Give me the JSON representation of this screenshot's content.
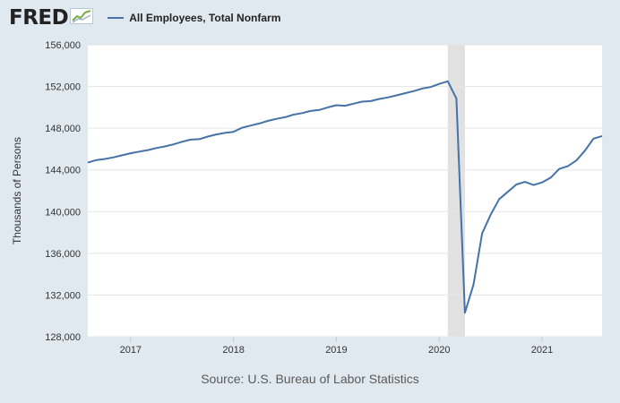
{
  "header": {
    "logo": "FRED",
    "logo_icon": "fred-chart-icon",
    "legend_label": "All Employees, Total Nonfarm"
  },
  "colors": {
    "background": "#e1e9f0",
    "plot": "#ffffff",
    "series": "#4572a7",
    "recession": "#e1e1e1",
    "grid": "#e6e6e6"
  },
  "source": "Source: U.S. Bureau of Labor Statistics",
  "chart_data": {
    "type": "line",
    "title": "",
    "xlabel": "",
    "ylabel": "Thousands of Persons",
    "ylim": [
      128000,
      156000
    ],
    "xlim": [
      "2016-08",
      "2021-08"
    ],
    "yticks": [
      {
        "value": 128000,
        "label": "128,000"
      },
      {
        "value": 132000,
        "label": "132,000"
      },
      {
        "value": 136000,
        "label": "136,000"
      },
      {
        "value": 140000,
        "label": "140,000"
      },
      {
        "value": 144000,
        "label": "144,000"
      },
      {
        "value": 148000,
        "label": "148,000"
      },
      {
        "value": 152000,
        "label": "152,000"
      },
      {
        "value": 156000,
        "label": "156,000"
      }
    ],
    "xticks": [
      {
        "value": "2017-01",
        "label": "2017"
      },
      {
        "value": "2018-01",
        "label": "2018"
      },
      {
        "value": "2019-01",
        "label": "2019"
      },
      {
        "value": "2020-01",
        "label": "2020"
      },
      {
        "value": "2021-01",
        "label": "2021"
      }
    ],
    "recession": {
      "start": "2020-02",
      "end": "2020-04"
    },
    "grid": true,
    "legend": "top",
    "series": [
      {
        "name": "All Employees, Total Nonfarm",
        "x": [
          "2016-08",
          "2016-09",
          "2016-10",
          "2016-11",
          "2016-12",
          "2017-01",
          "2017-02",
          "2017-03",
          "2017-04",
          "2017-05",
          "2017-06",
          "2017-07",
          "2017-08",
          "2017-09",
          "2017-10",
          "2017-11",
          "2017-12",
          "2018-01",
          "2018-02",
          "2018-03",
          "2018-04",
          "2018-05",
          "2018-06",
          "2018-07",
          "2018-08",
          "2018-09",
          "2018-10",
          "2018-11",
          "2018-12",
          "2019-01",
          "2019-02",
          "2019-03",
          "2019-04",
          "2019-05",
          "2019-06",
          "2019-07",
          "2019-08",
          "2019-09",
          "2019-10",
          "2019-11",
          "2019-12",
          "2020-01",
          "2020-02",
          "2020-03",
          "2020-04",
          "2020-05",
          "2020-06",
          "2020-07",
          "2020-08",
          "2020-09",
          "2020-10",
          "2020-11",
          "2020-12",
          "2021-01",
          "2021-02",
          "2021-03",
          "2021-04",
          "2021-05",
          "2021-06",
          "2021-07",
          "2021-08"
        ],
        "values": [
          144700,
          144950,
          145050,
          145200,
          145400,
          145600,
          145750,
          145900,
          146100,
          146250,
          146450,
          146700,
          146900,
          146950,
          147200,
          147400,
          147550,
          147650,
          148050,
          148250,
          148450,
          148700,
          148900,
          149050,
          149300,
          149450,
          149650,
          149750,
          150000,
          150200,
          150150,
          150350,
          150550,
          150600,
          150800,
          150950,
          151150,
          151350,
          151550,
          151800,
          151950,
          152250,
          152500,
          150850,
          130300,
          133000,
          137900,
          139700,
          141200,
          141900,
          142600,
          142850,
          142550,
          142800,
          143250,
          144100,
          144350,
          144900,
          145850,
          147000,
          147250
        ]
      }
    ]
  }
}
